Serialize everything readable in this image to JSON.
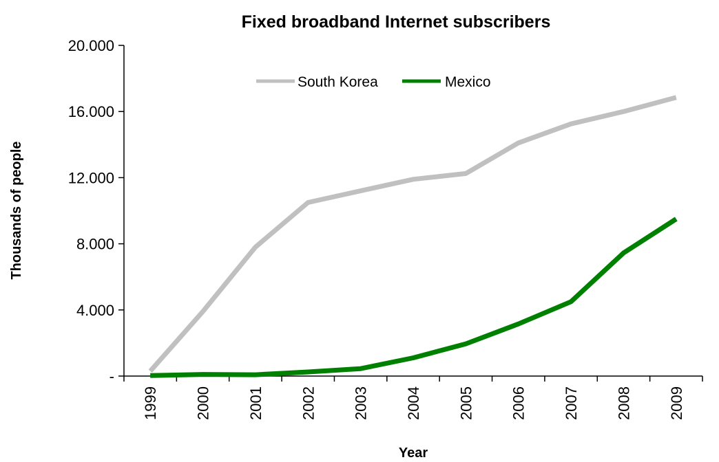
{
  "chart_data": {
    "type": "line",
    "title": "Fixed broadband Internet subscribers",
    "xlabel": "Year",
    "ylabel": "Thousands of people",
    "x": [
      "1999",
      "2000",
      "2001",
      "2002",
      "2003",
      "2004",
      "2005",
      "2006",
      "2007",
      "2008",
      "2009"
    ],
    "ylim": [
      0,
      20000
    ],
    "yticks": [
      {
        "value": 0,
        "label": "-"
      },
      {
        "value": 4000,
        "label": "4.000"
      },
      {
        "value": 8000,
        "label": "8.000"
      },
      {
        "value": 12000,
        "label": "12.000"
      },
      {
        "value": 16000,
        "label": "16.000"
      },
      {
        "value": 20000,
        "label": "20.000"
      }
    ],
    "grid": false,
    "legend_position": "top-center",
    "series": [
      {
        "name": "South Korea",
        "color": "#c0c0c0",
        "values": [
          300,
          3900,
          7800,
          10500,
          11200,
          11900,
          12250,
          14100,
          15250,
          16000,
          16850
        ]
      },
      {
        "name": "Mexico",
        "color": "#008000",
        "values": [
          30,
          100,
          80,
          250,
          450,
          1100,
          1950,
          3150,
          4500,
          7450,
          9500
        ]
      }
    ]
  }
}
